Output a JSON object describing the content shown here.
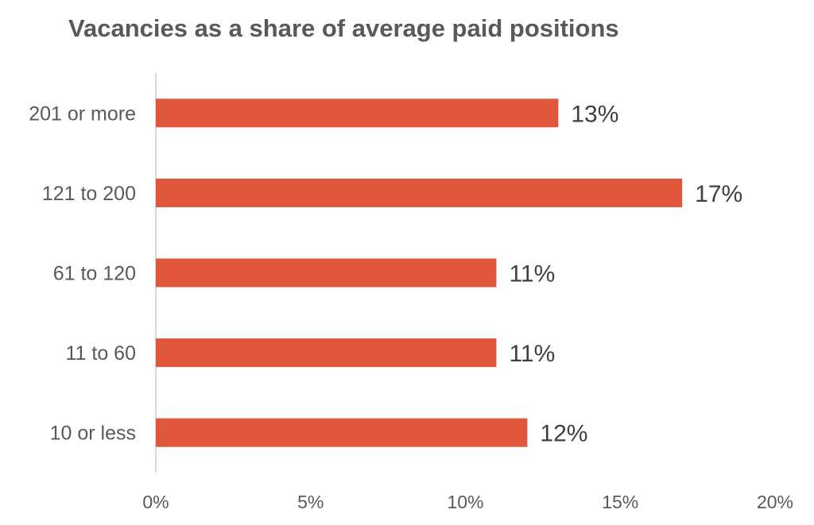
{
  "chart_data": {
    "type": "bar",
    "orientation": "horizontal",
    "title": "Vacancies as a share of average paid positions",
    "xlabel": "",
    "ylabel": "",
    "categories": [
      "201 or more",
      "121 to 200",
      "61 to 120",
      "11 to 60",
      "10 or less"
    ],
    "values": [
      13,
      17,
      11,
      11,
      12
    ],
    "data_labels": [
      "13%",
      "17%",
      "11%",
      "11%",
      "12%"
    ],
    "xlim": [
      0,
      20
    ],
    "x_ticks": [
      0,
      5,
      10,
      15,
      20
    ],
    "x_tick_labels": [
      "0%",
      "5%",
      "10%",
      "15%",
      "20%"
    ],
    "grid": false,
    "legend": "none",
    "bar_color": "#E0563B"
  }
}
